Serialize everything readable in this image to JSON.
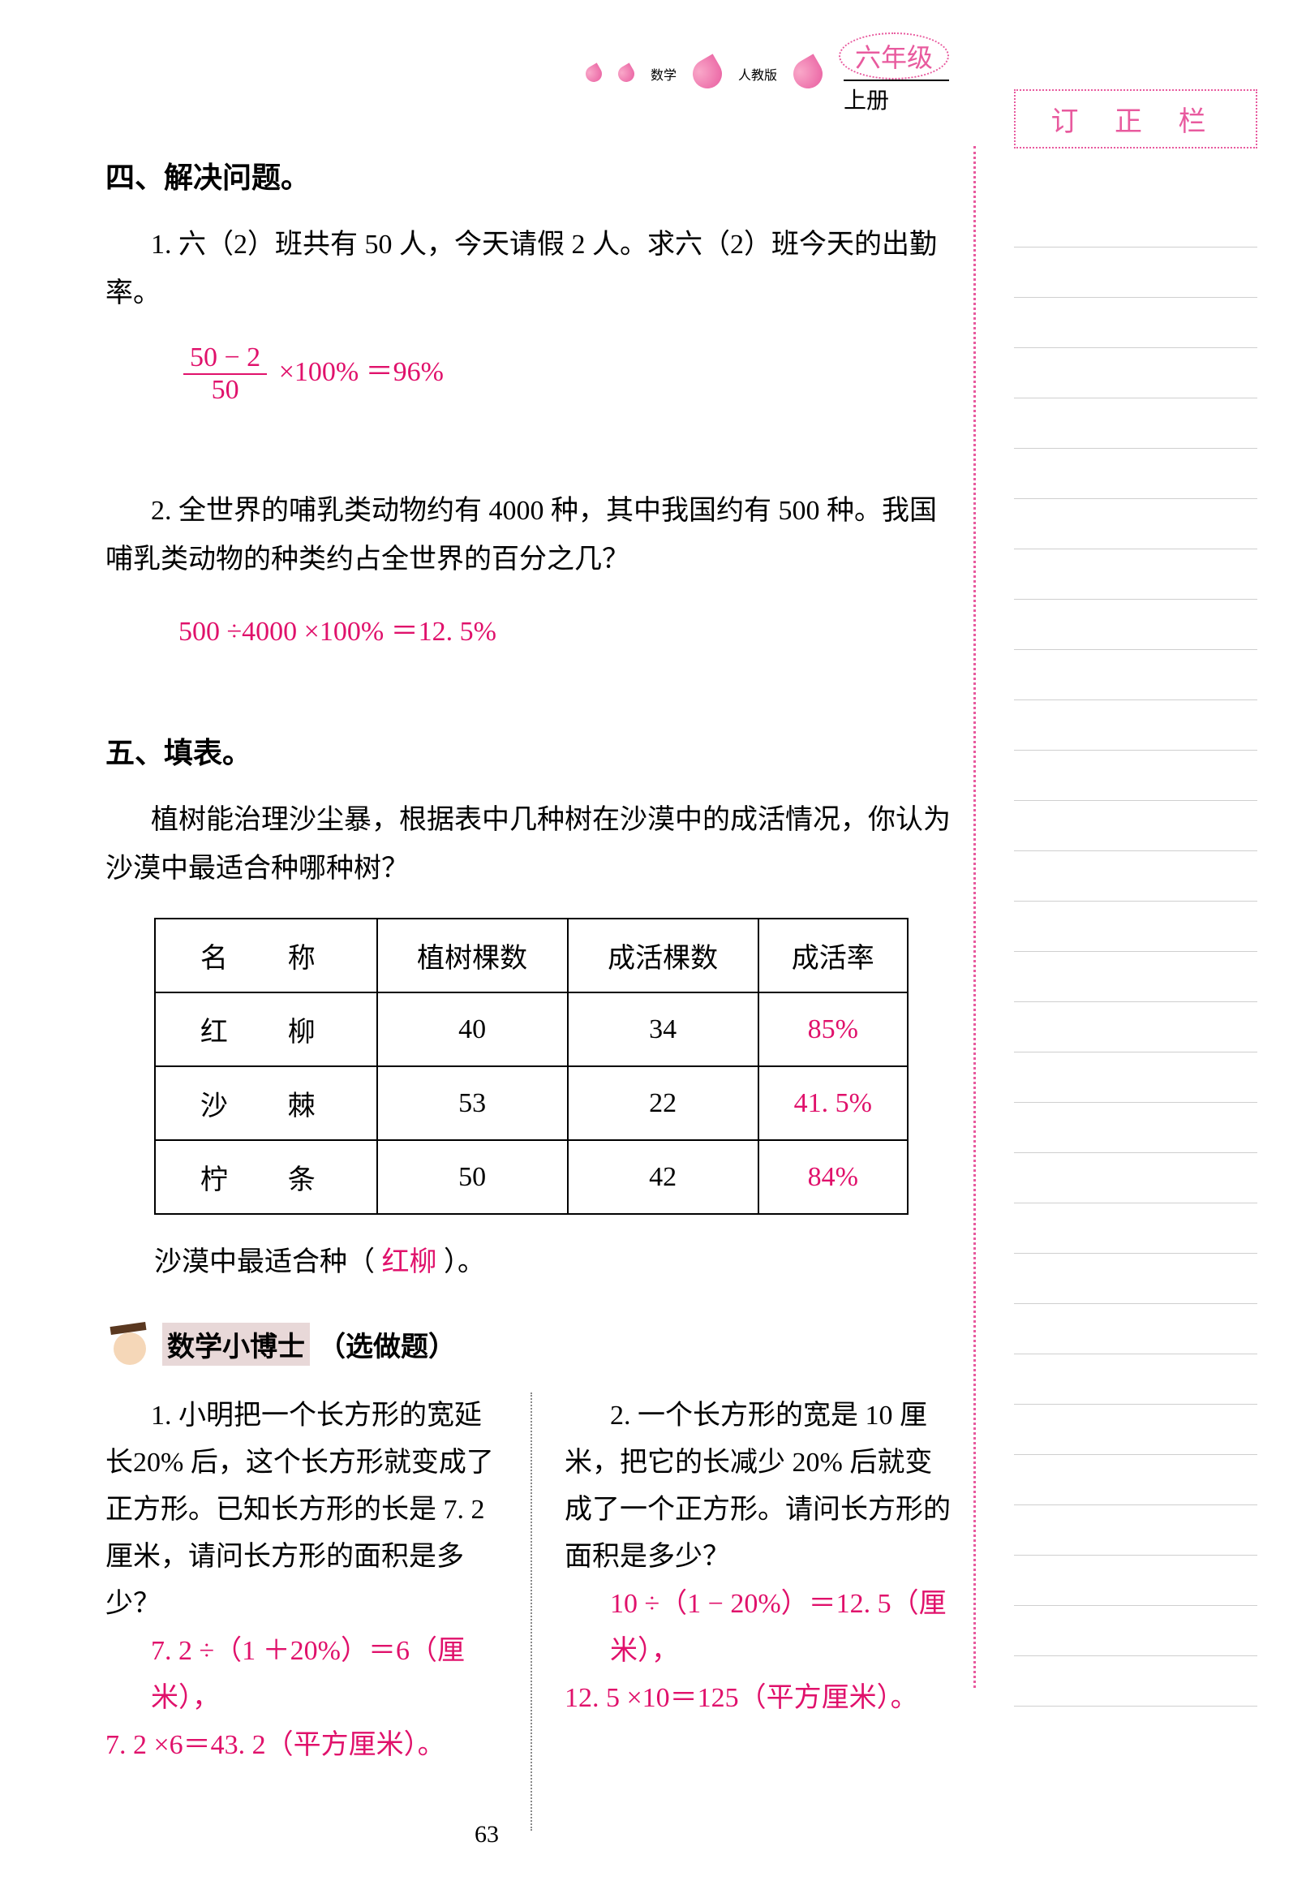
{
  "header": {
    "subject": "数学",
    "publisher": "人教版",
    "grade": "六年级",
    "volume": "上册"
  },
  "correction": {
    "title": "订 正 栏",
    "line_count": 30
  },
  "section4": {
    "title": "四、解决问题。",
    "p1": {
      "text": "1. 六（2）班共有 50 人，今天请假 2 人。求六（2）班今天的出勤率。",
      "frac_num": "50 − 2",
      "frac_den": "50",
      "frac_suffix": "×100% ＝96%"
    },
    "p2": {
      "text": "2. 全世界的哺乳类动物约有 4000 种，其中我国约有 500 种。我国哺乳类动物的种类约占全世界的百分之几？",
      "answer": "500 ÷4000 ×100% ＝12. 5%"
    }
  },
  "section5": {
    "title": "五、填表。",
    "intro": "植树能治理沙尘暴，根据表中几种树在沙漠中的成活情况，你认为沙漠中最适合种哪种树？",
    "table": {
      "headers": [
        "名　称",
        "植树棵数",
        "成活棵数",
        "成活率"
      ],
      "rows": [
        {
          "name": "红　柳",
          "planted": "40",
          "survived": "34",
          "rate": "85%"
        },
        {
          "name": "沙　棘",
          "planted": "53",
          "survived": "22",
          "rate": "41. 5%"
        },
        {
          "name": "柠　条",
          "planted": "50",
          "survived": "42",
          "rate": "84%"
        }
      ]
    },
    "conclusion_prefix": "沙漠中最适合种（",
    "conclusion_answer": "红柳",
    "conclusion_suffix": "）。"
  },
  "doctor": {
    "label": "数学小博士",
    "optional": "（选做题）",
    "p1": {
      "text": "1. 小明把一个长方形的宽延长20% 后，这个长方形就变成了正方形。已知长方形的长是 7. 2 厘米，请问长方形的面积是多少？",
      "ans1": "7. 2 ÷（1 ＋20%）＝6（厘米），",
      "ans2": "7. 2 ×6＝43. 2（平方厘米）。"
    },
    "p2": {
      "text": "2. 一个长方形的宽是 10 厘米，把它的长减少 20% 后就变成了一个正方形。请问长方形的面积是多少？",
      "ans1": "10 ÷（1 − 20%）＝12. 5（厘米），",
      "ans2": "12. 5 ×10＝125（平方厘米）。"
    }
  },
  "page_number": "63",
  "colors": {
    "accent": "#e0116b",
    "pink_border": "#e85a9e"
  }
}
